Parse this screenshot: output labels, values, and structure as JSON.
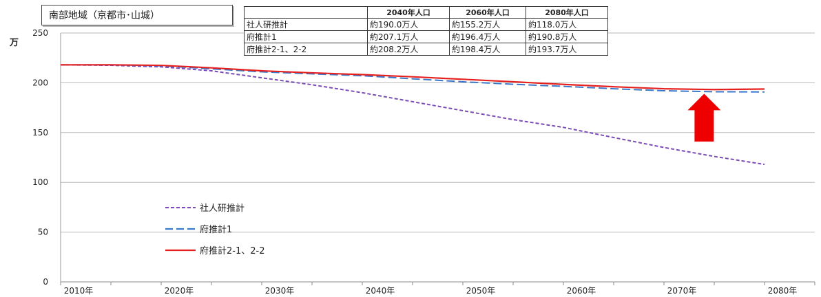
{
  "title_box": "南部地域（京都市･山城）",
  "summary_table": {
    "headers": [
      "",
      "2040年人口",
      "2060年人口",
      "2080年人口"
    ],
    "rows": [
      [
        "社人研推計",
        "約190.0万人",
        "約155.2万人",
        "約118.0万人"
      ],
      [
        "府推計1",
        "約207.1万人",
        "約196.4万人",
        "約190.8万人"
      ],
      [
        "府推計2-1、2-2",
        "約208.2万人",
        "約198.4万人",
        "約193.7万人"
      ]
    ]
  },
  "chart_data": {
    "type": "line",
    "ylabel": "万",
    "ylim": [
      0,
      250
    ],
    "yticks": [
      0,
      50,
      100,
      150,
      200,
      250
    ],
    "x": [
      2010,
      2015,
      2020,
      2025,
      2030,
      2035,
      2040,
      2045,
      2050,
      2055,
      2060,
      2065,
      2070,
      2075,
      2080
    ],
    "xtick_labels": [
      "2010年",
      "2020年",
      "2030年",
      "2040年",
      "2050年",
      "2060年",
      "2070年",
      "2080年"
    ],
    "grid": true,
    "legend_position": "lower-left",
    "series": [
      {
        "name": "社人研推計",
        "color": "#7a4bb5",
        "style": "dashed-short",
        "values": [
          218,
          217.5,
          216,
          212,
          205,
          198,
          190,
          181,
          172,
          163,
          155.2,
          145,
          135,
          126,
          118
        ]
      },
      {
        "name": "府推計1",
        "color": "#3a78c9",
        "style": "dashed-long",
        "values": [
          218,
          218,
          217,
          214,
          211,
          209,
          207.1,
          204,
          201,
          198.5,
          196.4,
          194,
          192,
          191,
          190.8
        ]
      },
      {
        "name": "府推計2-1、2-2",
        "color": "#e5201e",
        "style": "solid",
        "values": [
          218,
          218,
          217.5,
          215,
          212,
          210,
          208.2,
          206,
          203.5,
          201,
          198.4,
          196,
          194,
          193.2,
          193.7
        ]
      }
    ],
    "annotation": {
      "shape": "up-arrow",
      "color": "#ee0000",
      "x": 2074
    }
  }
}
